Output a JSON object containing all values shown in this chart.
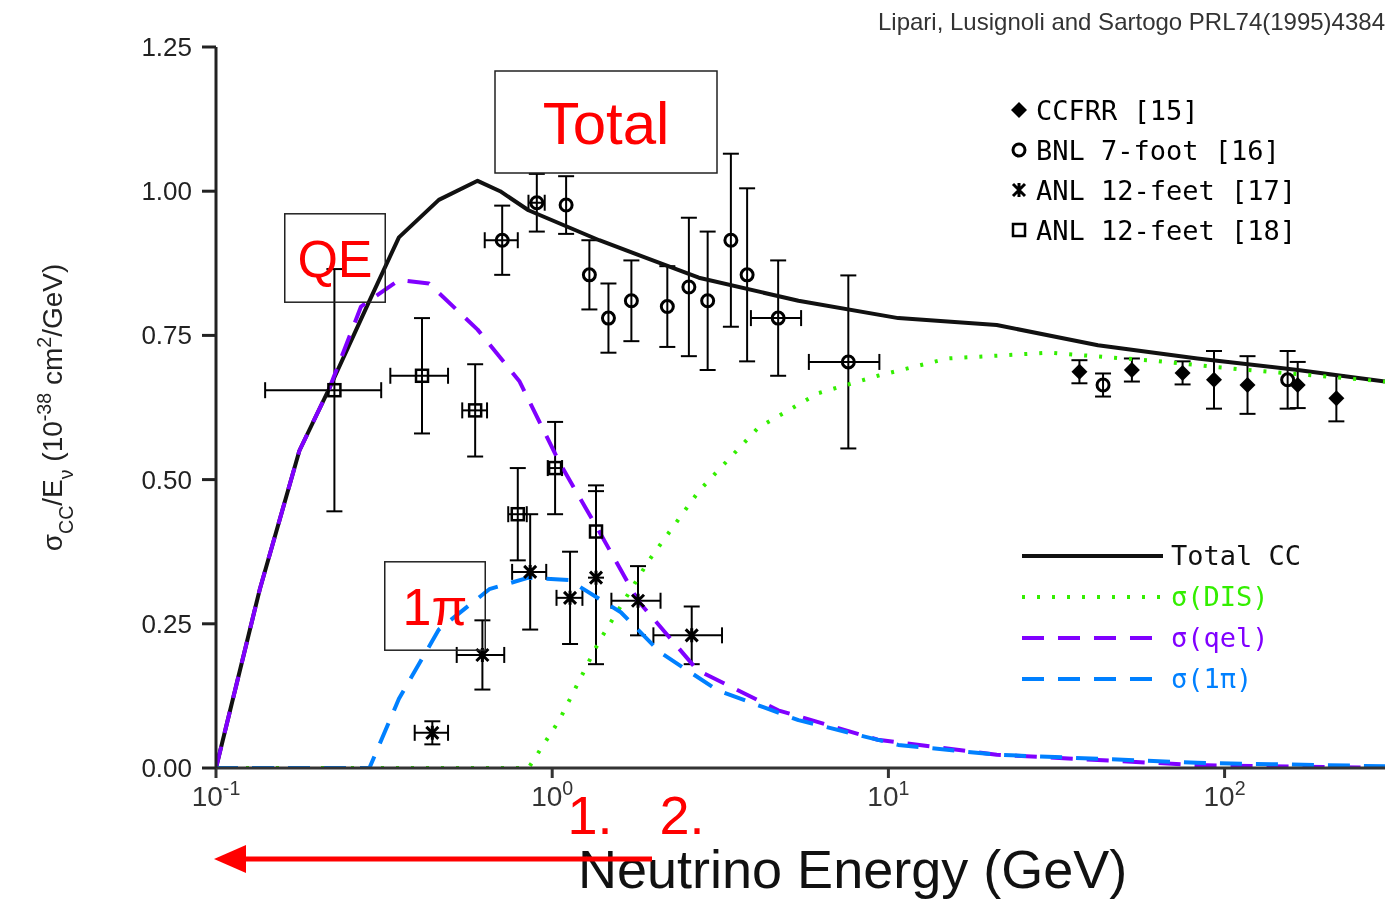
{
  "chart_data": {
    "type": "line",
    "title": "Lipari, Lusignoli and Sartogo  PRL74(1995)4384",
    "xlabel": "Neutrino Energy  (GeV)",
    "ylabel": "σ$_{CC}$/E$_{ν}$    (10$^{-38}$  cm$^{2}$/GeV)",
    "log": "x",
    "xlim": [
      0.1,
      300
    ],
    "xticks": [
      {
        "value": 0.1,
        "label": "10$^{-1}$"
      },
      {
        "value": 1,
        "label": "10$^{0}$"
      },
      {
        "value": 10,
        "label": "10$^{1}$"
      },
      {
        "value": 100,
        "label": "10$^{2}$"
      }
    ],
    "ylim": [
      0,
      1.25
    ],
    "yticks": [
      {
        "value": 0,
        "label": "0.00"
      },
      {
        "value": 0.25,
        "label": "0.25"
      },
      {
        "value": 0.5,
        "label": "0.50"
      },
      {
        "value": 0.75,
        "label": "0.75"
      },
      {
        "value": 1,
        "label": "1.00"
      },
      {
        "value": 1.25,
        "label": "1.25"
      }
    ],
    "grid": false,
    "legend": "right",
    "series": [
      {
        "type": "scatter",
        "name": "CCFRR [15]",
        "color": "#000000",
        "marker": "diamond",
        "x": [
          37,
          53,
          75,
          93,
          117,
          165,
          215
        ],
        "values": [
          0.687,
          0.69,
          0.685,
          0.673,
          0.664,
          0.664,
          0.641
        ],
        "errors": [
          0.02,
          0.02,
          0.02,
          0.05,
          0.05,
          0.04,
          0.04
        ],
        "xerrors": [
          null,
          null,
          null,
          null,
          null,
          null,
          null
        ]
      },
      {
        "type": "scatter",
        "name": "BNL 7-foot [16]",
        "color": "#000000",
        "marker": "circle",
        "x": [
          0.71,
          0.9,
          1.1,
          1.29,
          1.47,
          1.72,
          2.2,
          2.55,
          2.9,
          3.4,
          3.8,
          4.7,
          7.6,
          43.5,
          154
        ],
        "values": [
          0.915,
          0.98,
          0.976,
          0.855,
          0.78,
          0.81,
          0.8,
          0.834,
          0.81,
          0.915,
          0.855,
          0.78,
          0.704,
          0.664,
          0.673
        ],
        "errors": [
          0.06,
          0.05,
          0.05,
          0.06,
          0.06,
          0.07,
          0.07,
          0.12,
          0.12,
          0.15,
          0.15,
          0.1,
          0.15,
          0.02,
          0.05
        ],
        "xerrors": [
          0.08,
          0.05,
          null,
          null,
          null,
          null,
          null,
          null,
          null,
          null,
          null,
          0.8,
          1.8,
          null,
          null
        ]
      },
      {
        "type": "scatter",
        "name": "ANL 12-feet [17]",
        "color": "#000000",
        "marker": "cross",
        "x": [
          0.44,
          0.62,
          0.86,
          1.13,
          1.35,
          1.8,
          2.6
        ],
        "values": [
          0.061,
          0.196,
          0.34,
          0.295,
          0.33,
          0.29,
          0.23
        ],
        "errors": [
          0.02,
          0.06,
          0.1,
          0.08,
          0.15,
          0.06,
          0.05
        ],
        "xerrors": [
          0.05,
          0.1,
          0.1,
          0.1,
          null,
          0.3,
          0.6
        ]
      },
      {
        "type": "scatter",
        "name": "ANL 12-feet [18]",
        "color": "#000000",
        "marker": "square",
        "x": [
          0.225,
          0.41,
          0.59,
          0.79,
          1.02,
          1.35
        ],
        "values": [
          0.655,
          0.68,
          0.62,
          0.44,
          0.52,
          0.41
        ],
        "errors": [
          0.21,
          0.1,
          0.08,
          0.08,
          0.08,
          0.08
        ],
        "xerrors": [
          0.085,
          0.08,
          0.05,
          0.05,
          0.05,
          null
        ]
      },
      {
        "name": "Total CC",
        "color": "#111111",
        "line_style": "solid",
        "x": [
          0.1,
          0.135,
          0.177,
          0.218,
          0.286,
          0.35,
          0.46,
          0.6,
          0.7,
          0.85,
          1.38,
          2.73,
          5.4,
          10.7,
          21,
          42,
          83,
          165,
          300
        ],
        "values": [
          0,
          0.31,
          0.55,
          0.66,
          0.81,
          0.92,
          0.985,
          1.018,
          1.0,
          0.967,
          0.915,
          0.85,
          0.81,
          0.78,
          0.768,
          0.733,
          0.71,
          0.69,
          0.67
        ]
      },
      {
        "name": "σ(DIS)",
        "color": "#33ee00",
        "line_style": "dotted",
        "x": [
          0.1,
          0.85,
          1.05,
          1.38,
          1.94,
          2.73,
          4.1,
          6.2,
          9.3,
          15,
          30,
          59,
          117,
          300
        ],
        "values": [
          0,
          0,
          0.083,
          0.22,
          0.36,
          0.48,
          0.59,
          0.65,
          0.68,
          0.71,
          0.72,
          0.707,
          0.69,
          0.67
        ]
      },
      {
        "name": "σ(qel)",
        "color": "#8000ff",
        "line_style": "dashed",
        "x": [
          0.1,
          0.135,
          0.177,
          0.218,
          0.27,
          0.35,
          0.43,
          0.6,
          0.8,
          1.05,
          1.38,
          1.8,
          2.7,
          4.7,
          9.3,
          21,
          83,
          300
        ],
        "values": [
          0,
          0.31,
          0.55,
          0.66,
          0.8,
          0.846,
          0.84,
          0.76,
          0.67,
          0.53,
          0.41,
          0.29,
          0.17,
          0.1,
          0.049,
          0.023,
          0.005,
          0
        ]
      },
      {
        "name": "σ(1π)",
        "color": "#0080ff",
        "line_style": "dashed",
        "x": [
          0.1,
          0.286,
          0.35,
          0.46,
          0.65,
          0.85,
          1.12,
          1.6,
          2.1,
          3.1,
          5.4,
          10.7,
          21,
          83,
          300
        ],
        "values": [
          0,
          0,
          0.12,
          0.24,
          0.31,
          0.33,
          0.326,
          0.27,
          0.2,
          0.135,
          0.083,
          0.04,
          0.023,
          0.009,
          0.003
        ]
      }
    ],
    "annotations": [
      "Total",
      "QE",
      "1π",
      "1.",
      "2."
    ]
  }
}
